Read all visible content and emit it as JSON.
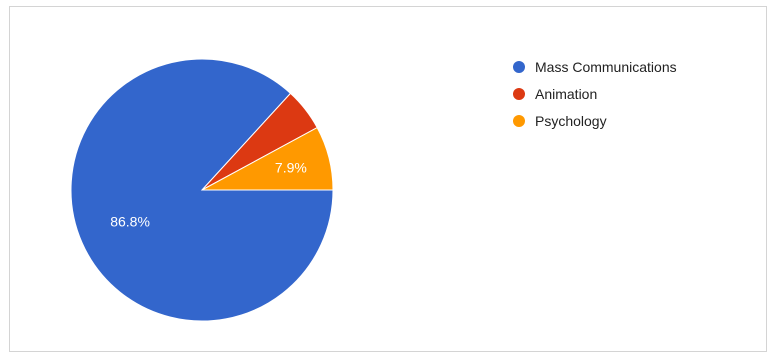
{
  "chart_data": {
    "type": "pie",
    "title": "",
    "legend_position": "right",
    "slices": [
      {
        "label": "Mass Communications",
        "value": 86.8,
        "display": "86.8%",
        "color": "#3366cc"
      },
      {
        "label": "Animation",
        "value": 5.3,
        "display": "",
        "color": "#dc3912"
      },
      {
        "label": "Psychology",
        "value": 7.9,
        "display": "7.9%",
        "color": "#ff9900"
      }
    ]
  }
}
